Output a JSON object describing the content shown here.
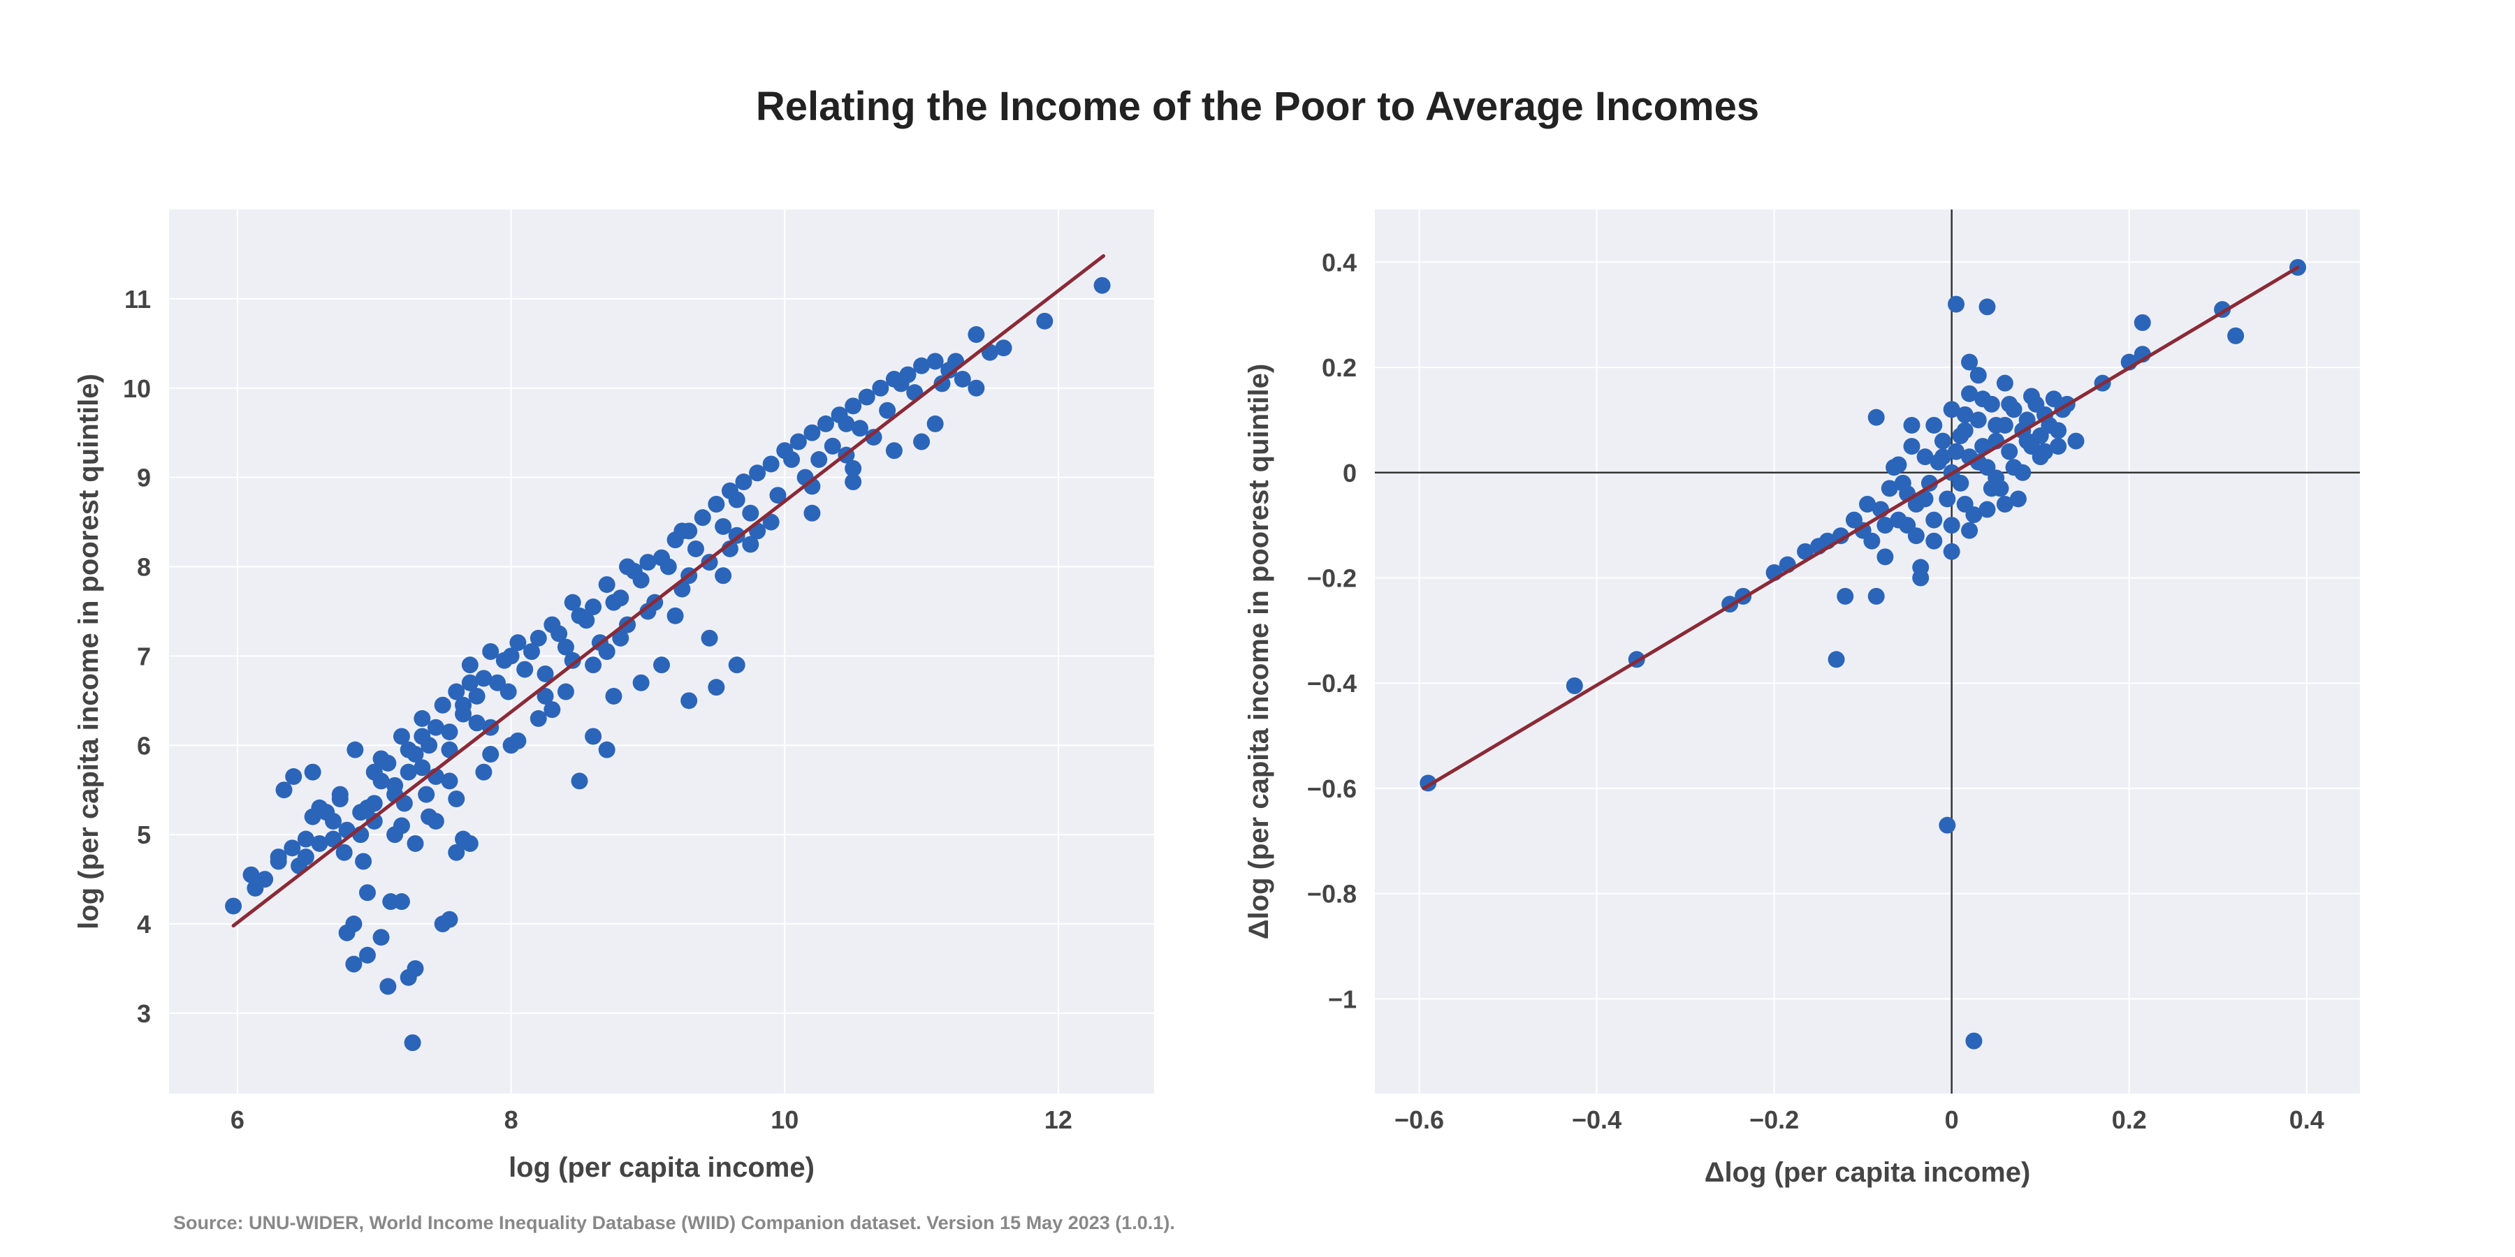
{
  "title": "Relating the Income of the Poor to Average Incomes",
  "source": "Source: UNU-WIDER, World Income Inequality Database (WIID) Companion dataset. Version 15 May 2023 (1.0.1).",
  "colors": {
    "background": "#eeeff5",
    "grid": "#ffffff",
    "points": "#2b65b9",
    "fit_line": "#8a2a36",
    "zero_line": "#333333"
  },
  "chart_data": [
    {
      "type": "scatter",
      "xlabel": "log (per capita income)",
      "ylabel": "log (per capita income in poorest quintile)",
      "xlim": [
        5.5,
        12.7
      ],
      "ylim": [
        2.1,
        12.0
      ],
      "xticks": [
        6,
        8,
        10,
        12
      ],
      "xtick_labels": [
        "6",
        "8",
        "10",
        "12"
      ],
      "yticks": [
        3,
        4,
        5,
        6,
        7,
        8,
        9,
        10,
        11
      ],
      "ytick_labels": [
        "3",
        "4",
        "5",
        "6",
        "7",
        "8",
        "9",
        "10",
        "11"
      ],
      "grid": true,
      "fit_line": {
        "x": [
          5.97,
          12.33
        ],
        "y": [
          3.98,
          11.48
        ]
      },
      "points": [
        [
          5.97,
          4.2
        ],
        [
          6.1,
          4.55
        ],
        [
          6.2,
          4.5
        ],
        [
          6.13,
          4.4
        ],
        [
          6.3,
          4.7
        ],
        [
          6.4,
          4.85
        ],
        [
          6.5,
          4.75
        ],
        [
          6.34,
          5.5
        ],
        [
          6.41,
          5.65
        ],
        [
          6.55,
          5.7
        ],
        [
          6.6,
          5.3
        ],
        [
          6.55,
          5.2
        ],
        [
          6.7,
          4.95
        ],
        [
          6.75,
          5.4
        ],
        [
          6.86,
          5.95
        ],
        [
          6.8,
          5.05
        ],
        [
          6.9,
          5.25
        ],
        [
          6.92,
          4.7
        ],
        [
          7.0,
          5.35
        ],
        [
          7.05,
          5.6
        ],
        [
          7.1,
          5.8
        ],
        [
          7.15,
          5.45
        ],
        [
          7.2,
          6.1
        ],
        [
          7.25,
          5.7
        ],
        [
          7.3,
          5.9
        ],
        [
          7.35,
          6.3
        ],
        [
          7.4,
          6.0
        ],
        [
          7.45,
          5.65
        ],
        [
          7.5,
          6.45
        ],
        [
          7.55,
          6.15
        ],
        [
          7.6,
          6.6
        ],
        [
          7.65,
          6.35
        ],
        [
          7.7,
          6.9
        ],
        [
          7.75,
          6.55
        ],
        [
          7.8,
          6.75
        ],
        [
          7.85,
          7.05
        ],
        [
          7.9,
          6.7
        ],
        [
          8.0,
          7.0
        ],
        [
          8.1,
          6.85
        ],
        [
          8.2,
          7.2
        ],
        [
          8.3,
          7.35
        ],
        [
          8.4,
          7.1
        ],
        [
          8.5,
          7.45
        ],
        [
          8.6,
          7.55
        ],
        [
          8.7,
          7.8
        ],
        [
          8.8,
          7.65
        ],
        [
          8.9,
          7.95
        ],
        [
          9.0,
          8.05
        ],
        [
          9.1,
          8.1
        ],
        [
          9.2,
          8.3
        ],
        [
          9.3,
          8.4
        ],
        [
          9.4,
          8.55
        ],
        [
          9.5,
          8.7
        ],
        [
          9.6,
          8.85
        ],
        [
          9.7,
          8.95
        ],
        [
          9.8,
          9.05
        ],
        [
          9.9,
          9.15
        ],
        [
          10.0,
          9.3
        ],
        [
          10.1,
          9.4
        ],
        [
          10.2,
          9.5
        ],
        [
          10.3,
          9.6
        ],
        [
          10.4,
          9.7
        ],
        [
          10.5,
          9.8
        ],
        [
          10.6,
          9.9
        ],
        [
          10.7,
          10.0
        ],
        [
          10.8,
          10.1
        ],
        [
          10.9,
          10.15
        ],
        [
          11.0,
          10.25
        ],
        [
          11.1,
          10.3
        ],
        [
          11.2,
          10.2
        ],
        [
          11.3,
          10.1
        ],
        [
          11.4,
          10.6
        ],
        [
          11.5,
          10.4
        ],
        [
          11.6,
          10.45
        ],
        [
          11.9,
          10.75
        ],
        [
          12.32,
          11.15
        ],
        [
          11.4,
          10.0
        ],
        [
          11.1,
          9.6
        ],
        [
          10.8,
          9.3
        ],
        [
          10.5,
          9.1
        ],
        [
          10.2,
          8.9
        ],
        [
          9.9,
          8.5
        ],
        [
          9.6,
          8.2
        ],
        [
          9.3,
          7.9
        ],
        [
          9.0,
          7.5
        ],
        [
          8.8,
          7.2
        ],
        [
          8.6,
          6.9
        ],
        [
          8.4,
          6.6
        ],
        [
          8.2,
          6.3
        ],
        [
          8.0,
          6.0
        ],
        [
          7.8,
          5.7
        ],
        [
          7.6,
          5.4
        ],
        [
          7.45,
          5.15
        ],
        [
          7.3,
          4.9
        ],
        [
          7.15,
          5.0
        ],
        [
          6.95,
          4.35
        ],
        [
          6.85,
          4.0
        ],
        [
          6.8,
          3.9
        ],
        [
          6.85,
          3.55
        ],
        [
          6.95,
          3.65
        ],
        [
          7.05,
          3.85
        ],
        [
          7.1,
          3.3
        ],
        [
          7.12,
          4.25
        ],
        [
          7.2,
          4.25
        ],
        [
          7.25,
          3.4
        ],
        [
          7.3,
          3.5
        ],
        [
          7.28,
          2.67
        ],
        [
          7.5,
          4.0
        ],
        [
          7.55,
          4.05
        ],
        [
          7.65,
          4.95
        ],
        [
          7.7,
          4.9
        ],
        [
          7.6,
          4.8
        ],
        [
          8.5,
          5.6
        ],
        [
          8.6,
          6.1
        ],
        [
          8.7,
          5.95
        ],
        [
          9.3,
          6.5
        ],
        [
          9.5,
          6.65
        ],
        [
          9.65,
          6.9
        ],
        [
          9.8,
          8.4
        ],
        [
          10.2,
          8.6
        ],
        [
          10.5,
          8.95
        ],
        [
          11.0,
          9.4
        ],
        [
          9.45,
          7.2
        ],
        [
          9.2,
          7.45
        ],
        [
          8.95,
          6.7
        ],
        [
          8.75,
          6.55
        ],
        [
          9.1,
          6.9
        ],
        [
          8.3,
          6.4
        ],
        [
          8.05,
          6.05
        ],
        [
          7.85,
          5.9
        ],
        [
          7.4,
          5.2
        ],
        [
          7.2,
          5.1
        ],
        [
          6.9,
          5.0
        ],
        [
          6.6,
          4.9
        ],
        [
          6.45,
          4.65
        ],
        [
          6.75,
          5.45
        ],
        [
          7.0,
          5.7
        ],
        [
          7.25,
          5.95
        ],
        [
          7.45,
          6.2
        ],
        [
          7.65,
          6.45
        ],
        [
          7.95,
          6.95
        ],
        [
          8.15,
          7.05
        ],
        [
          8.35,
          7.25
        ],
        [
          8.55,
          7.4
        ],
        [
          8.75,
          7.6
        ],
        [
          8.95,
          7.85
        ],
        [
          9.15,
          8.0
        ],
        [
          9.35,
          8.2
        ],
        [
          9.55,
          8.45
        ],
        [
          9.75,
          8.6
        ],
        [
          9.95,
          8.8
        ],
        [
          10.15,
          9.0
        ],
        [
          10.35,
          9.35
        ],
        [
          10.55,
          9.55
        ],
        [
          10.75,
          9.75
        ],
        [
          10.95,
          9.95
        ],
        [
          11.15,
          10.05
        ],
        [
          10.65,
          9.45
        ],
        [
          10.45,
          9.25
        ],
        [
          10.25,
          9.2
        ],
        [
          9.65,
          8.35
        ],
        [
          9.45,
          8.05
        ],
        [
          9.25,
          7.75
        ],
        [
          9.05,
          7.6
        ],
        [
          8.85,
          7.35
        ],
        [
          8.65,
          7.15
        ],
        [
          8.45,
          6.95
        ],
        [
          8.25,
          6.8
        ],
        [
          7.98,
          6.6
        ],
        [
          7.75,
          6.25
        ],
        [
          7.55,
          5.95
        ],
        [
          7.35,
          5.75
        ],
        [
          7.15,
          5.55
        ],
        [
          6.95,
          5.3
        ],
        [
          6.7,
          5.15
        ],
        [
          6.5,
          4.95
        ],
        [
          6.3,
          4.75
        ],
        [
          7.05,
          5.85
        ],
        [
          7.35,
          6.1
        ],
        [
          7.7,
          6.7
        ],
        [
          8.05,
          7.15
        ],
        [
          8.45,
          7.6
        ],
        [
          8.85,
          8.0
        ],
        [
          9.25,
          8.4
        ],
        [
          9.65,
          8.75
        ],
        [
          10.05,
          9.2
        ],
        [
          10.45,
          9.6
        ],
        [
          10.85,
          10.05
        ],
        [
          11.25,
          10.3
        ],
        [
          9.55,
          7.9
        ],
        [
          9.75,
          8.25
        ],
        [
          8.7,
          7.05
        ],
        [
          8.25,
          6.55
        ],
        [
          7.85,
          6.2
        ],
        [
          7.55,
          5.6
        ],
        [
          7.22,
          5.35
        ],
        [
          7.0,
          5.15
        ],
        [
          6.65,
          5.25
        ],
        [
          6.78,
          4.8
        ],
        [
          7.38,
          5.45
        ]
      ]
    },
    {
      "type": "scatter",
      "xlabel": "Δlog (per capita income)",
      "ylabel": "Δlog (per capita income in poorest quintile)",
      "xlim": [
        -0.65,
        0.46
      ],
      "ylim": [
        -1.18,
        0.5
      ],
      "xticks": [
        -0.6,
        -0.4,
        -0.2,
        0,
        0.2,
        0.4
      ],
      "xtick_labels": [
        "−0.6",
        "−0.4",
        "−0.2",
        "0",
        "0.2",
        "0.4"
      ],
      "yticks": [
        -1,
        -0.8,
        -0.6,
        -0.4,
        -0.2,
        0,
        0.2,
        0.4
      ],
      "ytick_labels": [
        "−1",
        "−0.8",
        "−0.6",
        "−0.4",
        "−0.2",
        "0",
        "0.2",
        "0.4"
      ],
      "grid": true,
      "zero_lines": true,
      "fit_line": {
        "x": [
          -0.595,
          0.39
        ],
        "y": [
          -0.6,
          0.39
        ]
      },
      "points": [
        [
          -0.59,
          -0.59
        ],
        [
          -0.425,
          -0.405
        ],
        [
          -0.355,
          -0.355
        ],
        [
          -0.25,
          -0.25
        ],
        [
          -0.235,
          -0.235
        ],
        [
          -0.2,
          -0.19
        ],
        [
          -0.185,
          -0.175
        ],
        [
          -0.165,
          -0.15
        ],
        [
          -0.15,
          -0.14
        ],
        [
          -0.13,
          -0.355
        ],
        [
          -0.12,
          -0.235
        ],
        [
          -0.1,
          -0.11
        ],
        [
          -0.085,
          -0.235
        ],
        [
          -0.08,
          -0.07
        ],
        [
          -0.075,
          -0.1
        ],
        [
          -0.07,
          -0.03
        ],
        [
          -0.065,
          0.01
        ],
        [
          -0.06,
          0.015
        ],
        [
          -0.05,
          -0.04
        ],
        [
          -0.045,
          0.05
        ],
        [
          -0.04,
          -0.06
        ],
        [
          -0.035,
          -0.2
        ],
        [
          -0.03,
          0.03
        ],
        [
          -0.025,
          -0.02
        ],
        [
          -0.02,
          -0.13
        ],
        [
          -0.015,
          0.02
        ],
        [
          -0.01,
          0.06
        ],
        [
          -0.005,
          -0.05
        ],
        [
          0.0,
          0.0
        ],
        [
          0.005,
          0.04
        ],
        [
          0.01,
          -0.02
        ],
        [
          0.015,
          0.08
        ],
        [
          0.02,
          0.03
        ],
        [
          0.025,
          -0.08
        ],
        [
          0.03,
          0.1
        ],
        [
          0.035,
          0.05
        ],
        [
          0.04,
          0.01
        ],
        [
          0.045,
          0.13
        ],
        [
          0.05,
          0.06
        ],
        [
          0.055,
          -0.03
        ],
        [
          0.06,
          0.09
        ],
        [
          0.065,
          0.04
        ],
        [
          0.07,
          0.12
        ],
        [
          0.075,
          -0.05
        ],
        [
          0.08,
          0.08
        ],
        [
          0.085,
          0.1
        ],
        [
          0.09,
          0.05
        ],
        [
          0.095,
          0.13
        ],
        [
          0.1,
          0.07
        ],
        [
          0.105,
          0.11
        ],
        [
          0.11,
          0.09
        ],
        [
          0.115,
          0.14
        ],
        [
          0.12,
          0.08
        ],
        [
          0.125,
          0.12
        ],
        [
          0.13,
          0.13
        ],
        [
          0.14,
          0.06
        ],
        [
          0.17,
          0.17
        ],
        [
          0.2,
          0.21
        ],
        [
          0.215,
          0.225
        ],
        [
          0.215,
          0.285
        ],
        [
          0.305,
          0.31
        ],
        [
          0.32,
          0.26
        ],
        [
          0.39,
          0.39
        ],
        [
          -0.085,
          0.105
        ],
        [
          0.005,
          0.32
        ],
        [
          0.04,
          0.315
        ],
        [
          0.02,
          0.21
        ],
        [
          0.03,
          0.185
        ],
        [
          0.06,
          0.17
        ],
        [
          0.09,
          0.145
        ],
        [
          -0.005,
          -0.67
        ],
        [
          0.025,
          -1.08
        ],
        [
          -0.11,
          -0.09
        ],
        [
          -0.095,
          -0.06
        ],
        [
          -0.06,
          -0.09
        ],
        [
          -0.04,
          -0.12
        ],
        [
          -0.02,
          -0.09
        ],
        [
          0.0,
          -0.15
        ],
        [
          0.02,
          -0.11
        ],
        [
          0.04,
          -0.07
        ],
        [
          0.05,
          -0.01
        ],
        [
          0.07,
          0.01
        ],
        [
          0.1,
          0.03
        ],
        [
          0.12,
          0.05
        ],
        [
          0.02,
          0.15
        ],
        [
          0.0,
          0.12
        ],
        [
          -0.02,
          0.09
        ],
        [
          -0.045,
          0.09
        ],
        [
          0.015,
          0.11
        ],
        [
          0.035,
          0.14
        ],
        [
          0.065,
          0.13
        ],
        [
          0.085,
          0.06
        ],
        [
          0.105,
          0.04
        ],
        [
          -0.01,
          0.03
        ],
        [
          0.01,
          0.07
        ],
        [
          0.03,
          0.02
        ],
        [
          0.05,
          0.09
        ],
        [
          -0.03,
          -0.05
        ],
        [
          -0.055,
          -0.02
        ],
        [
          0.06,
          -0.06
        ],
        [
          -0.14,
          -0.13
        ],
        [
          -0.125,
          -0.12
        ],
        [
          -0.09,
          -0.13
        ],
        [
          -0.075,
          -0.16
        ],
        [
          -0.05,
          -0.1
        ],
        [
          -0.035,
          -0.18
        ],
        [
          0.0,
          -0.1
        ],
        [
          0.015,
          -0.06
        ],
        [
          0.045,
          -0.03
        ],
        [
          0.08,
          0.0
        ]
      ]
    }
  ]
}
